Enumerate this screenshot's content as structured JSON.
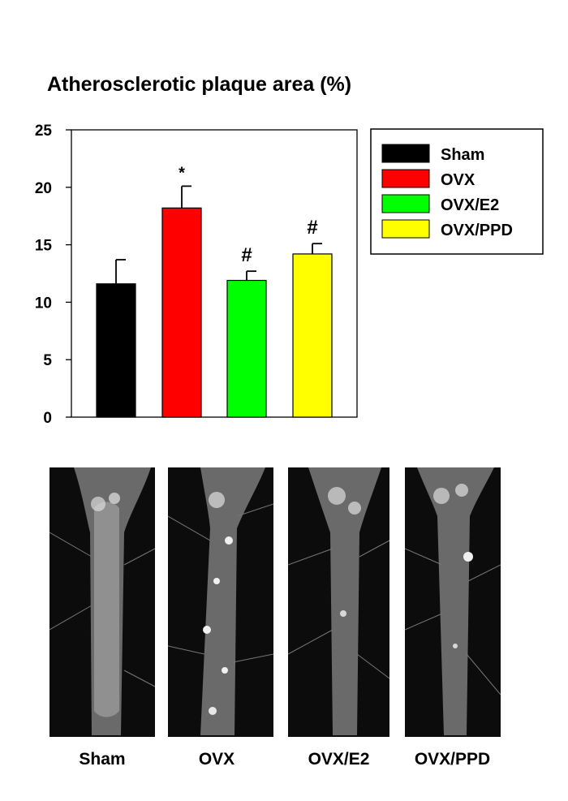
{
  "chart_data": {
    "type": "bar",
    "title": "Atherosclerotic plaque area (%)",
    "categories": [
      "Sham",
      "OVX",
      "OVX/E2",
      "OVX/PPD"
    ],
    "values": [
      11.6,
      18.2,
      11.9,
      14.2
    ],
    "errors": [
      2.1,
      1.9,
      0.8,
      0.9
    ],
    "annotations": [
      "",
      "*",
      "#",
      "#"
    ],
    "colors": [
      "#000000",
      "#ff0000",
      "#00ff00",
      "#ffff00"
    ],
    "ylim": [
      0,
      25
    ],
    "yticks": [
      0,
      5,
      10,
      15,
      20,
      25
    ],
    "xlabel": "",
    "ylabel": "",
    "grid": false,
    "legend": {
      "placement": "right",
      "entries": [
        "Sham",
        "OVX",
        "OVX/E2",
        "OVX/PPD"
      ]
    }
  },
  "photos": {
    "labels": [
      "Sham",
      "OVX",
      "OVX/E2",
      "OVX/PPD"
    ]
  }
}
